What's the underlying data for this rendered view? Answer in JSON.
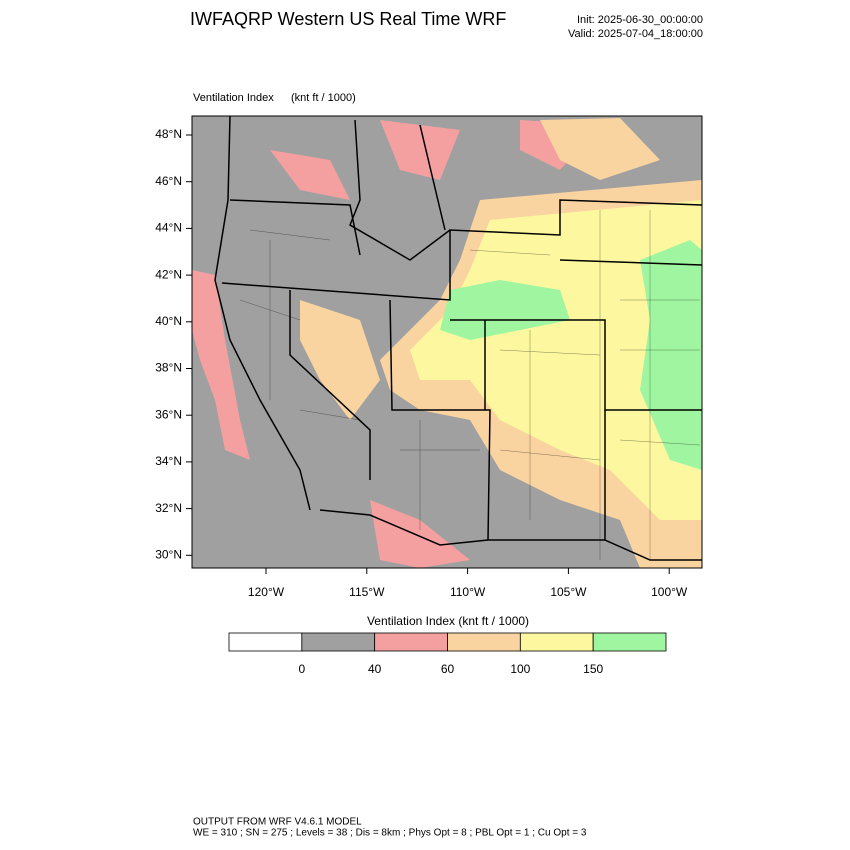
{
  "header": {
    "title": "IWFAQRP Western US Real Time WRF",
    "init": "Init: 2025-06-30_00:00:00",
    "valid": "Valid: 2025-07-04_18:00:00"
  },
  "map": {
    "label": "Ventilation Index",
    "units": "(knt ft / 1000)",
    "lat_ticks": [
      "48°N",
      "46°N",
      "44°N",
      "42°N",
      "40°N",
      "38°N",
      "36°N",
      "34°N",
      "32°N",
      "30°N"
    ],
    "lon_ticks": [
      "120°W",
      "115°W",
      "110°W",
      "105°W",
      "100°W"
    ]
  },
  "colorbar": {
    "title": "Ventilation Index   (knt ft / 1000)",
    "levels": [
      0,
      40,
      60,
      100,
      150
    ],
    "colors": [
      "#ffffff",
      "#a0a0a0",
      "#f5a0a0",
      "#f9d4a0",
      "#fdf8a0",
      "#a0f5a0"
    ]
  },
  "footer": {
    "line1": "OUTPUT FROM WRF V4.6.1 MODEL",
    "line2": "WE = 310 ; SN = 275 ; Levels = 38 ; Dis = 8km ; Phys Opt = 8 ; PBL Opt = 1 ; Cu Opt = 3"
  }
}
